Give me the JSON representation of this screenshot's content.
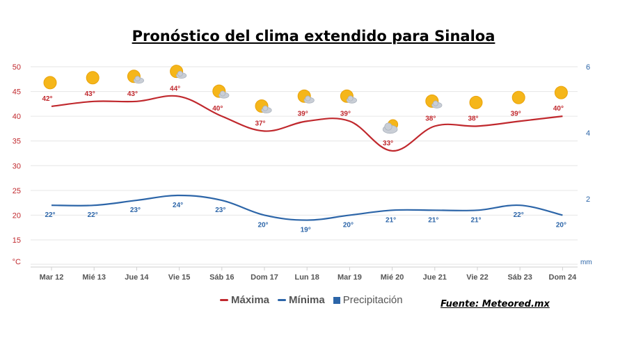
{
  "title": "Pronóstico del clima extendido para Sinaloa",
  "source": "Fuente: Meteored.mx",
  "colors": {
    "max": "#c0282d",
    "min": "#2c65a8",
    "precip": "#2c65a8",
    "grid": "#e6e6e6",
    "sun": "#f5b61a",
    "cloud": "#c9ced6"
  },
  "legend": [
    {
      "label": "Máxima",
      "type": "line",
      "color": "#c0282d"
    },
    {
      "label": "Mínima",
      "type": "line",
      "color": "#2c65a8"
    },
    {
      "label": "Precipitación",
      "type": "square",
      "color": "#2c65a8"
    }
  ],
  "chart_data": {
    "type": "line",
    "categories": [
      "Mar 12",
      "Mié 13",
      "Jue 14",
      "Vie 15",
      "Sáb 16",
      "Dom 17",
      "Lun 18",
      "Mar 19",
      "Mié 20",
      "Jue 21",
      "Vie 22",
      "Sáb 23",
      "Dom 24"
    ],
    "series": [
      {
        "name": "Máxima",
        "values": [
          42,
          43,
          43,
          44,
          40,
          37,
          39,
          39,
          33,
          38,
          38,
          39,
          40
        ],
        "labels": [
          "42°",
          "43°",
          "43°",
          "44°",
          "40°",
          "37°",
          "39°",
          "39°",
          "33°",
          "38°",
          "38°",
          "39°",
          "40°"
        ]
      },
      {
        "name": "Mínima",
        "values": [
          22,
          22,
          23,
          24,
          23,
          20,
          19,
          20,
          21,
          21,
          21,
          22,
          20
        ],
        "labels": [
          "22°",
          "22°",
          "23°",
          "24°",
          "23°",
          "20°",
          "19°",
          "20°",
          "21°",
          "21°",
          "21°",
          "22°",
          "20°"
        ]
      }
    ],
    "icons": [
      "sun",
      "sun",
      "sun-cloud",
      "sun-cloud",
      "sun-cloud",
      "sun-cloud",
      "sun-cloud",
      "sun-cloud",
      "cloud-sun",
      "sun-cloud",
      "sun",
      "sun",
      "sun"
    ],
    "y_left": {
      "ticks": [
        50,
        45,
        40,
        35,
        30,
        25,
        20,
        15
      ],
      "unit": "°C",
      "ylim": [
        10,
        50
      ]
    },
    "y_right": {
      "ticks": [
        6,
        4,
        2
      ],
      "unit": "mm",
      "ylim": [
        0,
        6
      ]
    },
    "grid": true,
    "legend_position": "bottom"
  }
}
